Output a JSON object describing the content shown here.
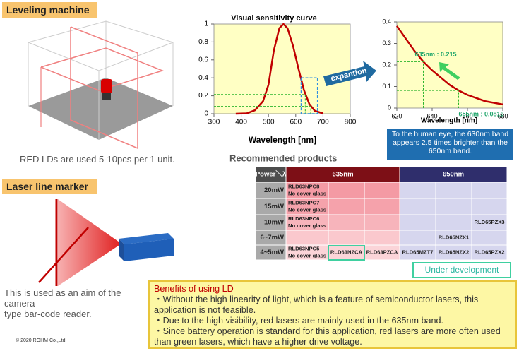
{
  "sections": {
    "leveling": {
      "title": "Leveling machine",
      "caption": "RED LDs are used 5-10pcs per 1 unit."
    },
    "marker": {
      "title": "Laser line marker",
      "caption": [
        "This is used as an aim of the",
        "camera",
        "type bar-code reader."
      ]
    }
  },
  "chart_data": [
    {
      "type": "line",
      "title": "Visual sensitivity curve",
      "x_label": "Wavelength [nm]",
      "x": [
        380,
        420,
        450,
        480,
        500,
        520,
        540,
        555,
        570,
        590,
        610,
        630,
        650,
        670,
        700
      ],
      "series": [
        {
          "color": "#c00000",
          "values": [
            0,
            0.004,
            0.038,
            0.139,
            0.323,
            0.71,
            0.954,
            1,
            0.952,
            0.757,
            0.503,
            0.265,
            0.107,
            0.032,
            0.004
          ]
        }
      ],
      "xlim": [
        300,
        800
      ],
      "xticks": [
        300,
        400,
        500,
        600,
        700,
        800
      ],
      "ylim": [
        0,
        1
      ],
      "yticks": [
        0,
        0.2,
        0.4,
        0.6,
        0.8,
        1
      ],
      "background": "#ffffc4"
    },
    {
      "type": "line",
      "x_label": "Wavelength [nm]",
      "arrow_label": "expantion",
      "x": [
        620,
        630,
        635,
        640,
        650,
        655,
        660,
        670,
        680
      ],
      "series": [
        {
          "color": "#c00000",
          "values": [
            0.381,
            0.265,
            0.215,
            0.175,
            0.107,
            0.0816,
            0.061,
            0.032,
            0.017
          ]
        }
      ],
      "xlim": [
        620,
        680
      ],
      "xticks": [
        620,
        640,
        660,
        680
      ],
      "ylim": [
        0,
        0.4
      ],
      "yticks": [
        0,
        0.1,
        0.2,
        0.3,
        0.4
      ],
      "background": "#ffffc4",
      "annotations": [
        {
          "text": "635nm : 0.215",
          "x": 635,
          "y": 0.215
        },
        {
          "text": "655nm : 0.0816",
          "x": 655,
          "y": 0.0816
        }
      ]
    }
  ],
  "note": "To the human eye, the 630nm band appears 2.5 times brighter than the 650nm band.",
  "table": {
    "title": "Recommended products",
    "header": [
      "Power＼λ",
      "635nm",
      "650nm"
    ],
    "rows": [
      {
        "power": "20mW",
        "cells": [
          {
            "name": "RLD63NPC8",
            "note": "No cover glass"
          },
          null,
          null,
          null,
          null,
          null
        ]
      },
      {
        "power": "15mW",
        "cells": [
          {
            "name": "RLD63NPC7",
            "note": "No cover glass"
          },
          null,
          null,
          null,
          null,
          null
        ]
      },
      {
        "power": "10mW",
        "cells": [
          {
            "name": "RLD63NPC6",
            "note": "No cover glass"
          },
          null,
          null,
          null,
          null,
          {
            "name": "RLD65PZX3"
          }
        ]
      },
      {
        "power": "6~7mW",
        "cells": [
          null,
          null,
          null,
          null,
          {
            "name": "RLD65NZX1"
          },
          null
        ]
      },
      {
        "power": "4~5mW",
        "cells": [
          {
            "name": "RLD63NPC5",
            "note": "No cover glass"
          },
          {
            "name": "RLD63NZCA"
          },
          {
            "name": "RLD63PZCA"
          },
          {
            "name": "RLD65MZT7"
          },
          {
            "name": "RLD65NZX2"
          },
          {
            "name": "RLD65PZX2"
          }
        ]
      }
    ],
    "legend": "Under development"
  },
  "benefits": {
    "title": "Benefits of using LD",
    "items": [
      "・Without the high linearity of light, which is a feature of semiconductor lasers, this application is not feasible.",
      "・Due to the high visibility, red lasers are mainly used in the 635nm band.",
      "・Since battery operation is standard for this application, red lasers are more often used than green lasers, which have a higher drive voltage."
    ]
  },
  "footer": "© 2020 ROHM Co.,Ltd."
}
